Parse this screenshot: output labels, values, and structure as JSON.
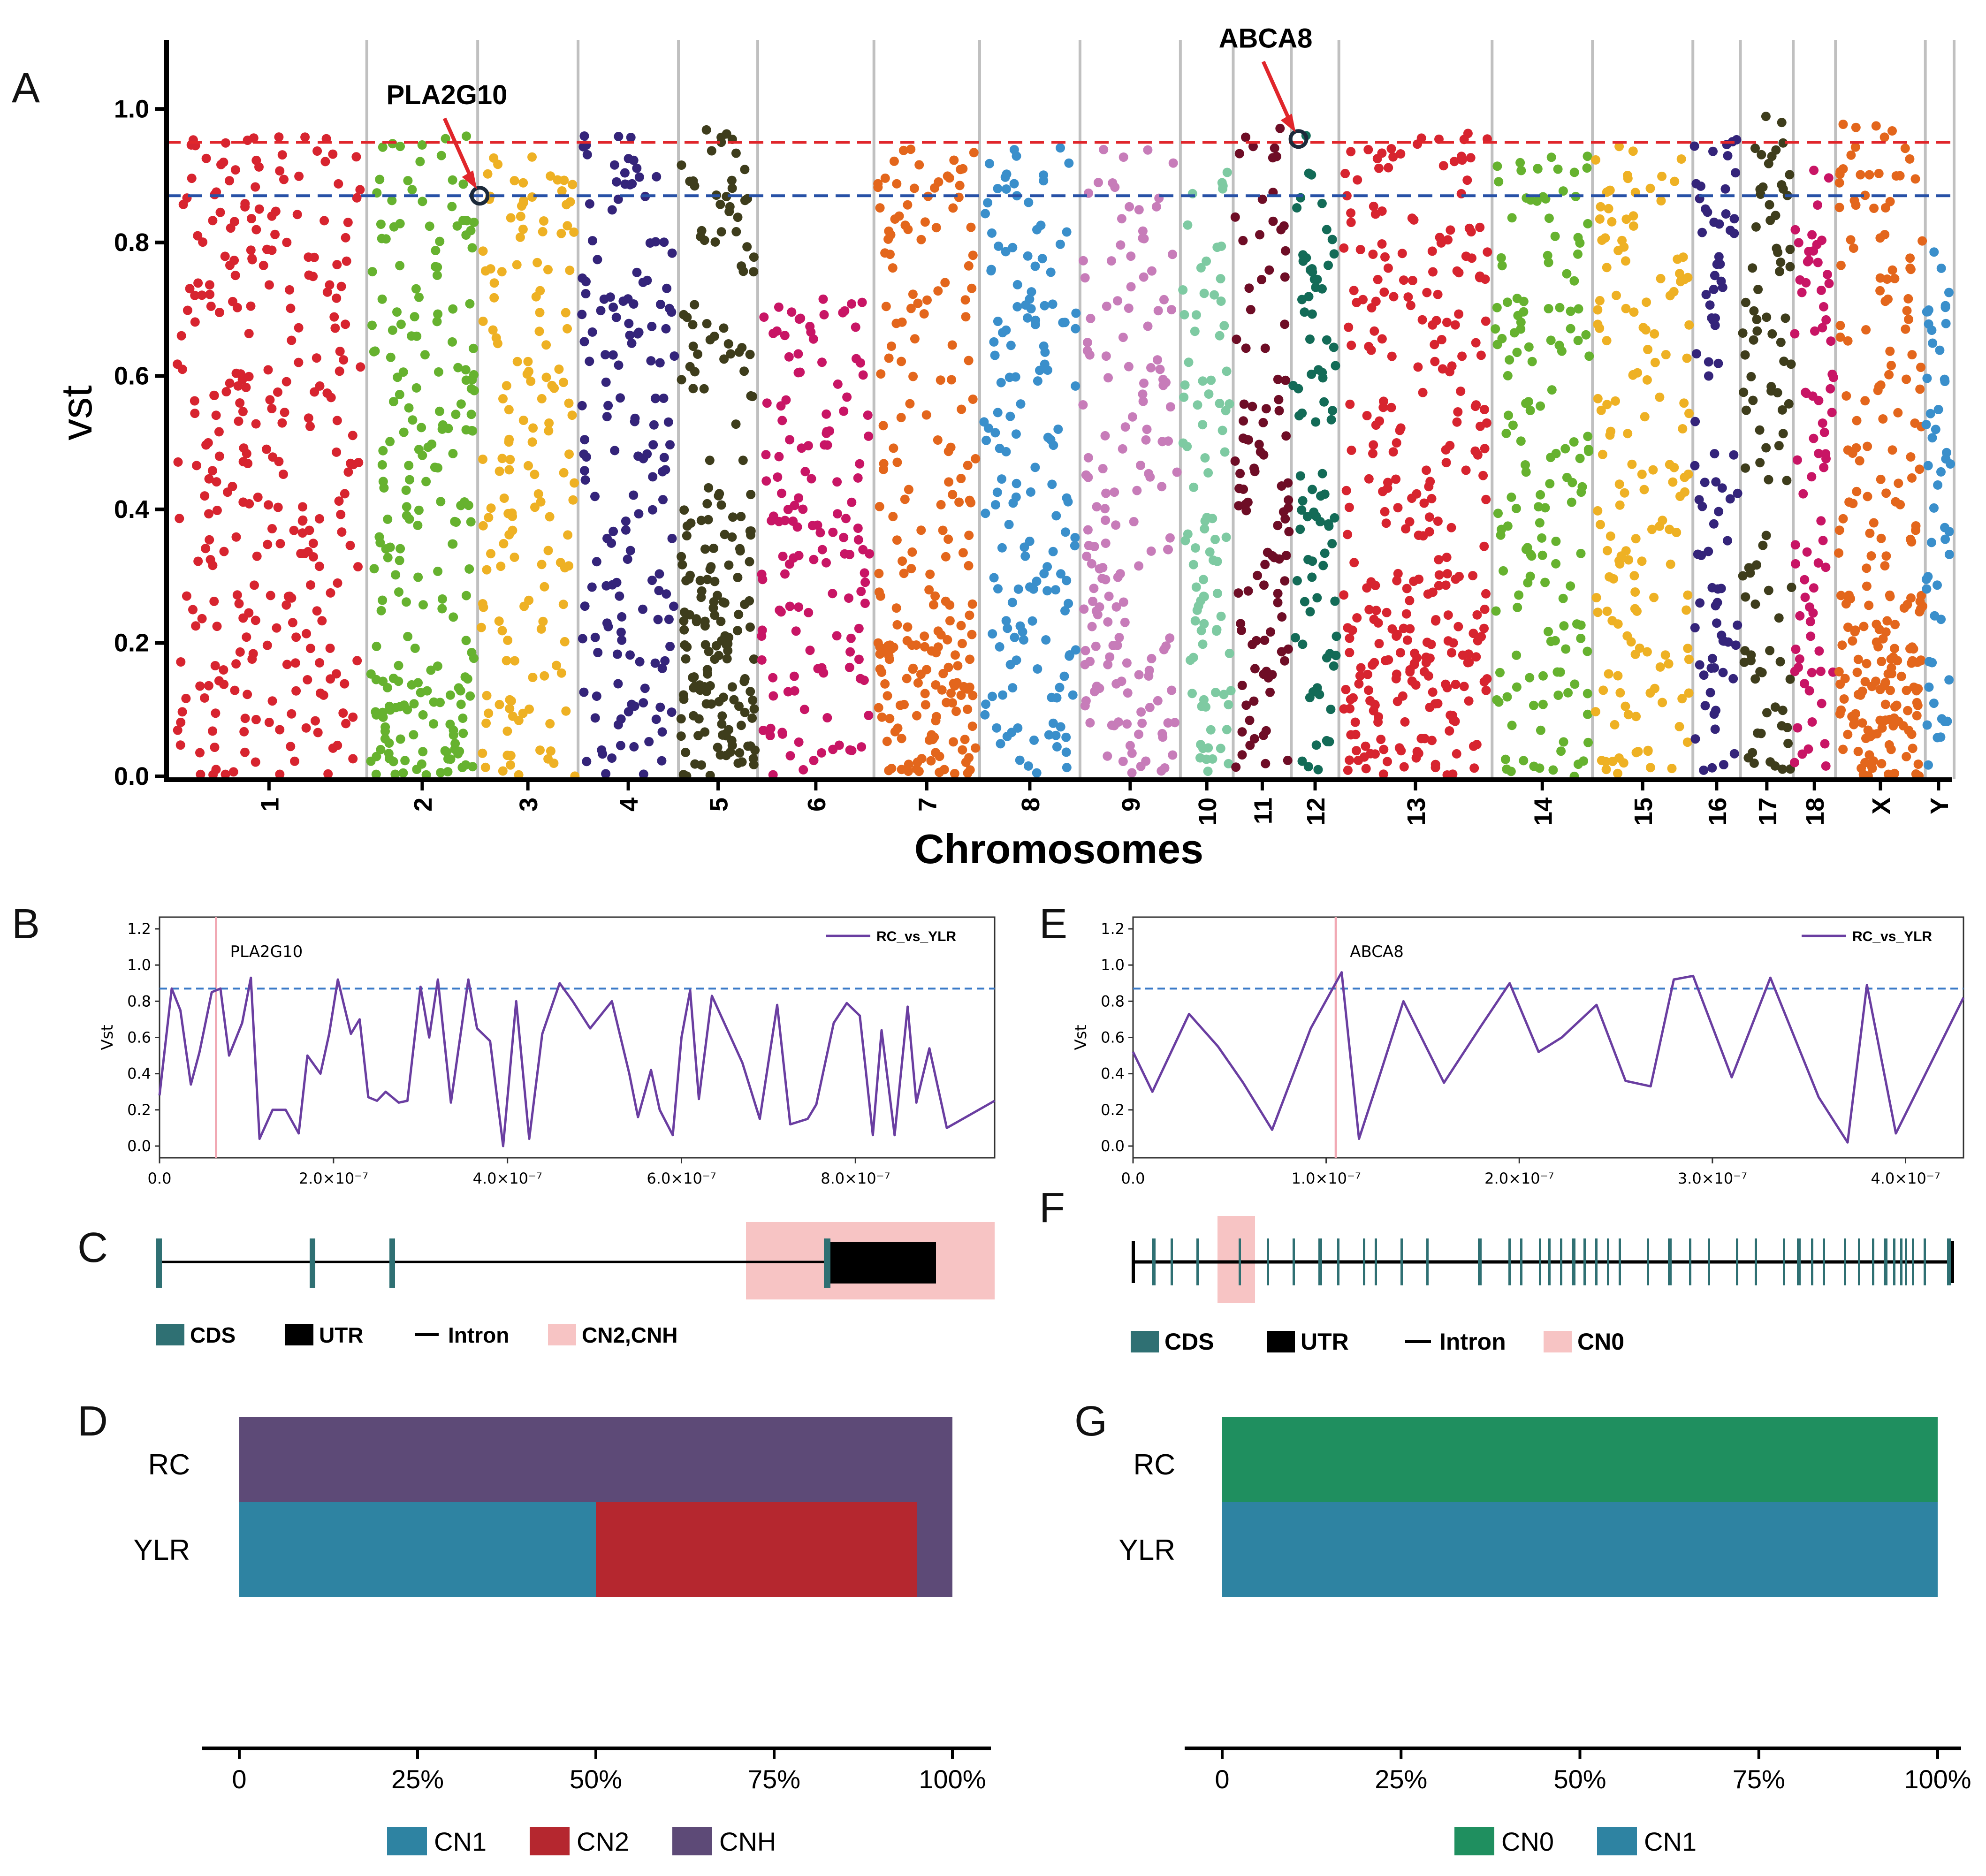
{
  "colors": {
    "red": "#d7242f",
    "green": "#66b22f",
    "gold": "#eeb124",
    "navy": "#34247a",
    "olive": "#3e3d1c",
    "magenta": "#c81565",
    "orange": "#e3661c",
    "blue": "#3a8fcb",
    "pink": "#c77cb9",
    "mint": "#7ecaa2",
    "maroon": "#6e0d26",
    "teal": "#136b57",
    "threshold_red": "#e0262b",
    "threshold_blue": "#2751a6",
    "cds": "#2f7073",
    "utr": "#000000",
    "cnv_box": "#f7c4c4",
    "cn0": "#1f8f5f",
    "cn1": "#2e83a2",
    "cn2": "#b5272f",
    "cnh": "#5d4a77",
    "line": "#6a3ea1"
  },
  "panel_letters": [
    "A",
    "B",
    "C",
    "D",
    "E",
    "F",
    "G"
  ],
  "chart_data": [
    {
      "id": "A",
      "type": "scatter",
      "title": "",
      "xlabel": "Chromosomes",
      "ylabel": "vst",
      "ylim": [
        0,
        1.1
      ],
      "yticks": [
        "0.0",
        "0.2",
        "0.4",
        "0.6",
        "0.8",
        "1.0"
      ],
      "thresholds": [
        0.95,
        0.87
      ],
      "chromosomes": [
        {
          "name": "1",
          "span": [
            0,
            1.85
          ],
          "color": "red",
          "bands": [
            [
              0.0,
              0.97,
              1.0
            ]
          ]
        },
        {
          "name": "2",
          "span": [
            1.85,
            2.9
          ],
          "color": "green",
          "bands": [
            [
              0.0,
              0.96,
              1.0
            ],
            [
              0.0,
              0.15,
              1.0
            ]
          ]
        },
        {
          "name": "3",
          "span": [
            2.9,
            3.85
          ],
          "color": "gold",
          "bands": [
            [
              0.0,
              0.93,
              1.0
            ]
          ]
        },
        {
          "name": "4",
          "span": [
            3.85,
            4.8
          ],
          "color": "navy",
          "bands": [
            [
              0.0,
              0.96,
              1.0
            ]
          ]
        },
        {
          "name": "5",
          "span": [
            4.8,
            5.55
          ],
          "color": "olive",
          "bands": [
            [
              0.0,
              0.97,
              1.0
            ],
            [
              0.0,
              0.4,
              1.0
            ]
          ]
        },
        {
          "name": "6",
          "span": [
            5.55,
            6.65
          ],
          "color": "magenta",
          "bands": [
            [
              0.0,
              0.72,
              1.0
            ]
          ]
        },
        {
          "name": "7",
          "span": [
            6.65,
            7.65
          ],
          "color": "orange",
          "bands": [
            [
              0.0,
              0.95,
              1.0
            ],
            [
              0.0,
              0.2,
              1.0
            ]
          ]
        },
        {
          "name": "8",
          "span": [
            7.65,
            8.6
          ],
          "color": "blue",
          "bands": [
            [
              0.0,
              0.95,
              1.0
            ]
          ]
        },
        {
          "name": "9",
          "span": [
            8.6,
            9.55
          ],
          "color": "pink",
          "bands": [
            [
              0.0,
              0.95,
              1.0
            ]
          ]
        },
        {
          "name": "10",
          "span": [
            9.55,
            10.05
          ],
          "color": "mint",
          "bands": [
            [
              0.0,
              0.92,
              1.0
            ]
          ]
        },
        {
          "name": "11",
          "span": [
            10.05,
            10.6
          ],
          "color": "maroon",
          "bands": [
            [
              0.0,
              0.98,
              1.0
            ]
          ]
        },
        {
          "name": "12",
          "span": [
            10.6,
            11.05
          ],
          "color": "teal",
          "bands": [
            [
              0.0,
              0.96,
              1.0
            ]
          ]
        },
        {
          "name": "13",
          "span": [
            11.05,
            12.5
          ],
          "color": "red",
          "bands": [
            [
              0.0,
              0.97,
              1.0
            ],
            [
              0.0,
              0.25,
              1.0
            ]
          ]
        },
        {
          "name": "14",
          "span": [
            12.5,
            13.45
          ],
          "color": "green",
          "bands": [
            [
              0.0,
              0.93,
              1.0
            ]
          ]
        },
        {
          "name": "15",
          "span": [
            13.45,
            14.4
          ],
          "color": "gold",
          "bands": [
            [
              0.0,
              0.95,
              1.0
            ]
          ]
        },
        {
          "name": "16",
          "span": [
            14.4,
            14.85
          ],
          "color": "navy",
          "bands": [
            [
              0.0,
              0.96,
              1.0
            ]
          ]
        },
        {
          "name": "17",
          "span": [
            14.85,
            15.35
          ],
          "color": "olive",
          "bands": [
            [
              0.0,
              0.99,
              1.0
            ]
          ]
        },
        {
          "name": "18",
          "span": [
            15.35,
            15.75
          ],
          "color": "magenta",
          "bands": [
            [
              0.0,
              0.93,
              1.0
            ]
          ]
        },
        {
          "name": "X",
          "span": [
            15.75,
            16.6
          ],
          "color": "orange",
          "bands": [
            [
              0.0,
              0.99,
              1.0
            ],
            [
              0.0,
              0.3,
              1.4
            ]
          ]
        },
        {
          "name": "Y",
          "span": [
            16.6,
            16.85
          ],
          "color": "blue",
          "bands": [
            [
              0.0,
              0.82,
              1.0
            ]
          ]
        }
      ],
      "highlights": [
        {
          "label": "PLA2G10",
          "chrom": "3",
          "x_frac": 0.02,
          "value": 0.87
        },
        {
          "label": "ABCA8",
          "chrom": "12",
          "x_frac": 0.15,
          "value": 0.955
        }
      ]
    },
    {
      "id": "B",
      "type": "line",
      "series_name": "RC_vs_YLR",
      "ylabel": "Vst",
      "ylim": [
        0,
        1.2
      ],
      "yticks": [
        "0.0",
        "0.2",
        "0.4",
        "0.6",
        "0.8",
        "1.0",
        "1.2"
      ],
      "xlim": [
        0,
        9.6e-07
      ],
      "xticks": [
        {
          "value": 0,
          "label": "0.0"
        },
        {
          "value": 2e-07,
          "label": "2.0×10⁻⁷"
        },
        {
          "value": 4e-07,
          "label": "4.0×10⁻⁷"
        },
        {
          "value": 6e-07,
          "label": "6.0×10⁻⁷"
        },
        {
          "value": 8e-07,
          "label": "8.0×10⁻⁷"
        }
      ],
      "threshold": 0.87,
      "marker": {
        "label": "PLA2G10",
        "x": 6.5e-08
      },
      "x": [
        0,
        1.4e-08,
        2.4e-08,
        3.6e-08,
        4.6e-08,
        6e-08,
        7e-08,
        8e-08,
        9.5e-08,
        1.05e-07,
        1.15e-07,
        1.3e-07,
        1.45e-07,
        1.6e-07,
        1.7e-07,
        1.85e-07,
        1.95e-07,
        2.05e-07,
        2.2e-07,
        2.3e-07,
        2.4e-07,
        2.5e-07,
        2.6e-07,
        2.75e-07,
        2.85e-07,
        3e-07,
        3.1e-07,
        3.2e-07,
        3.35e-07,
        3.55e-07,
        3.65e-07,
        3.8e-07,
        3.95e-07,
        4.1e-07,
        4.25e-07,
        4.4e-07,
        4.6e-07,
        4.75e-07,
        4.95e-07,
        5.2e-07,
        5.4e-07,
        5.5e-07,
        5.65e-07,
        5.75e-07,
        5.9e-07,
        6e-07,
        6.1e-07,
        6.2e-07,
        6.35e-07,
        6.7e-07,
        6.9e-07,
        7.1e-07,
        7.25e-07,
        7.45e-07,
        7.55e-07,
        7.75e-07,
        7.9e-07,
        8.05e-07,
        8.2e-07,
        8.3e-07,
        8.45e-07,
        8.6e-07,
        8.7e-07,
        8.85e-07,
        9.05e-07,
        9.6e-07
      ],
      "y": [
        0.28,
        0.87,
        0.75,
        0.34,
        0.52,
        0.85,
        0.87,
        0.5,
        0.68,
        0.93,
        0.04,
        0.2,
        0.2,
        0.07,
        0.5,
        0.4,
        0.62,
        0.92,
        0.62,
        0.7,
        0.27,
        0.25,
        0.3,
        0.24,
        0.25,
        0.88,
        0.6,
        0.92,
        0.24,
        0.92,
        0.65,
        0.58,
        0.0,
        0.8,
        0.04,
        0.62,
        0.9,
        0.8,
        0.65,
        0.8,
        0.4,
        0.16,
        0.42,
        0.2,
        0.06,
        0.6,
        0.86,
        0.26,
        0.83,
        0.46,
        0.15,
        0.78,
        0.12,
        0.15,
        0.23,
        0.68,
        0.79,
        0.72,
        0.06,
        0.64,
        0.06,
        0.77,
        0.24,
        0.54,
        0.1,
        0.25
      ]
    },
    {
      "id": "C",
      "type": "gene_model",
      "legend": [
        "CDS",
        "UTR",
        "Intron",
        "CN2,CNH"
      ]
    },
    {
      "id": "D",
      "type": "bar",
      "orientation": "horizontal",
      "stacked": true,
      "categories": [
        "RC",
        "YLR"
      ],
      "xticks": [
        "0",
        "25%",
        "50%",
        "75%",
        "100%"
      ],
      "series": [
        {
          "name": "CN1",
          "color": "cn1",
          "values": [
            0,
            50
          ]
        },
        {
          "name": "CN2",
          "color": "cn2",
          "values": [
            0,
            45
          ]
        },
        {
          "name": "CNH",
          "color": "cnh",
          "values": [
            100,
            5
          ]
        }
      ]
    },
    {
      "id": "E",
      "type": "line",
      "series_name": "RC_vs_YLR",
      "ylabel": "Vst",
      "ylim": [
        0,
        1.2
      ],
      "yticks": [
        "0.0",
        "0.2",
        "0.4",
        "0.6",
        "0.8",
        "1.0",
        "1.2"
      ],
      "xlim": [
        0,
        4.3e-07
      ],
      "xticks": [
        {
          "value": 0,
          "label": "0.0"
        },
        {
          "value": 1e-07,
          "label": "1.0×10⁻⁷"
        },
        {
          "value": 2e-07,
          "label": "2.0×10⁻⁷"
        },
        {
          "value": 3e-07,
          "label": "3.0×10⁻⁷"
        },
        {
          "value": 4e-07,
          "label": "4.0×10⁻⁷"
        }
      ],
      "threshold": 0.87,
      "marker": {
        "label": "ABCA8",
        "x": 1.05e-07
      },
      "x": [
        0,
        1e-08,
        2.9e-08,
        4.4e-08,
        5.7e-08,
        7.2e-08,
        9.2e-08,
        1.08e-07,
        1.17e-07,
        1.28e-07,
        1.4e-07,
        1.61e-07,
        1.8e-07,
        1.95e-07,
        2.1e-07,
        2.22e-07,
        2.4e-07,
        2.55e-07,
        2.68e-07,
        2.8e-07,
        2.9e-07,
        3.1e-07,
        3.3e-07,
        3.55e-07,
        3.7e-07,
        3.8e-07,
        3.95e-07,
        4.3e-07
      ],
      "y": [
        0.52,
        0.3,
        0.73,
        0.55,
        0.35,
        0.09,
        0.65,
        0.96,
        0.04,
        0.4,
        0.8,
        0.35,
        0.66,
        0.9,
        0.52,
        0.6,
        0.78,
        0.36,
        0.33,
        0.92,
        0.94,
        0.38,
        0.93,
        0.27,
        0.02,
        0.89,
        0.07,
        0.82
      ]
    },
    {
      "id": "F",
      "type": "gene_model",
      "legend": [
        "CDS",
        "UTR",
        "Intron",
        "CN0"
      ]
    },
    {
      "id": "G",
      "type": "bar",
      "orientation": "horizontal",
      "stacked": true,
      "categories": [
        "RC",
        "YLR"
      ],
      "xticks": [
        "0",
        "25%",
        "50%",
        "75%",
        "100%"
      ],
      "series": [
        {
          "name": "CN0",
          "color": "cn0",
          "values": [
            100,
            0
          ]
        },
        {
          "name": "CN1",
          "color": "cn1",
          "values": [
            0,
            100
          ]
        }
      ]
    }
  ]
}
